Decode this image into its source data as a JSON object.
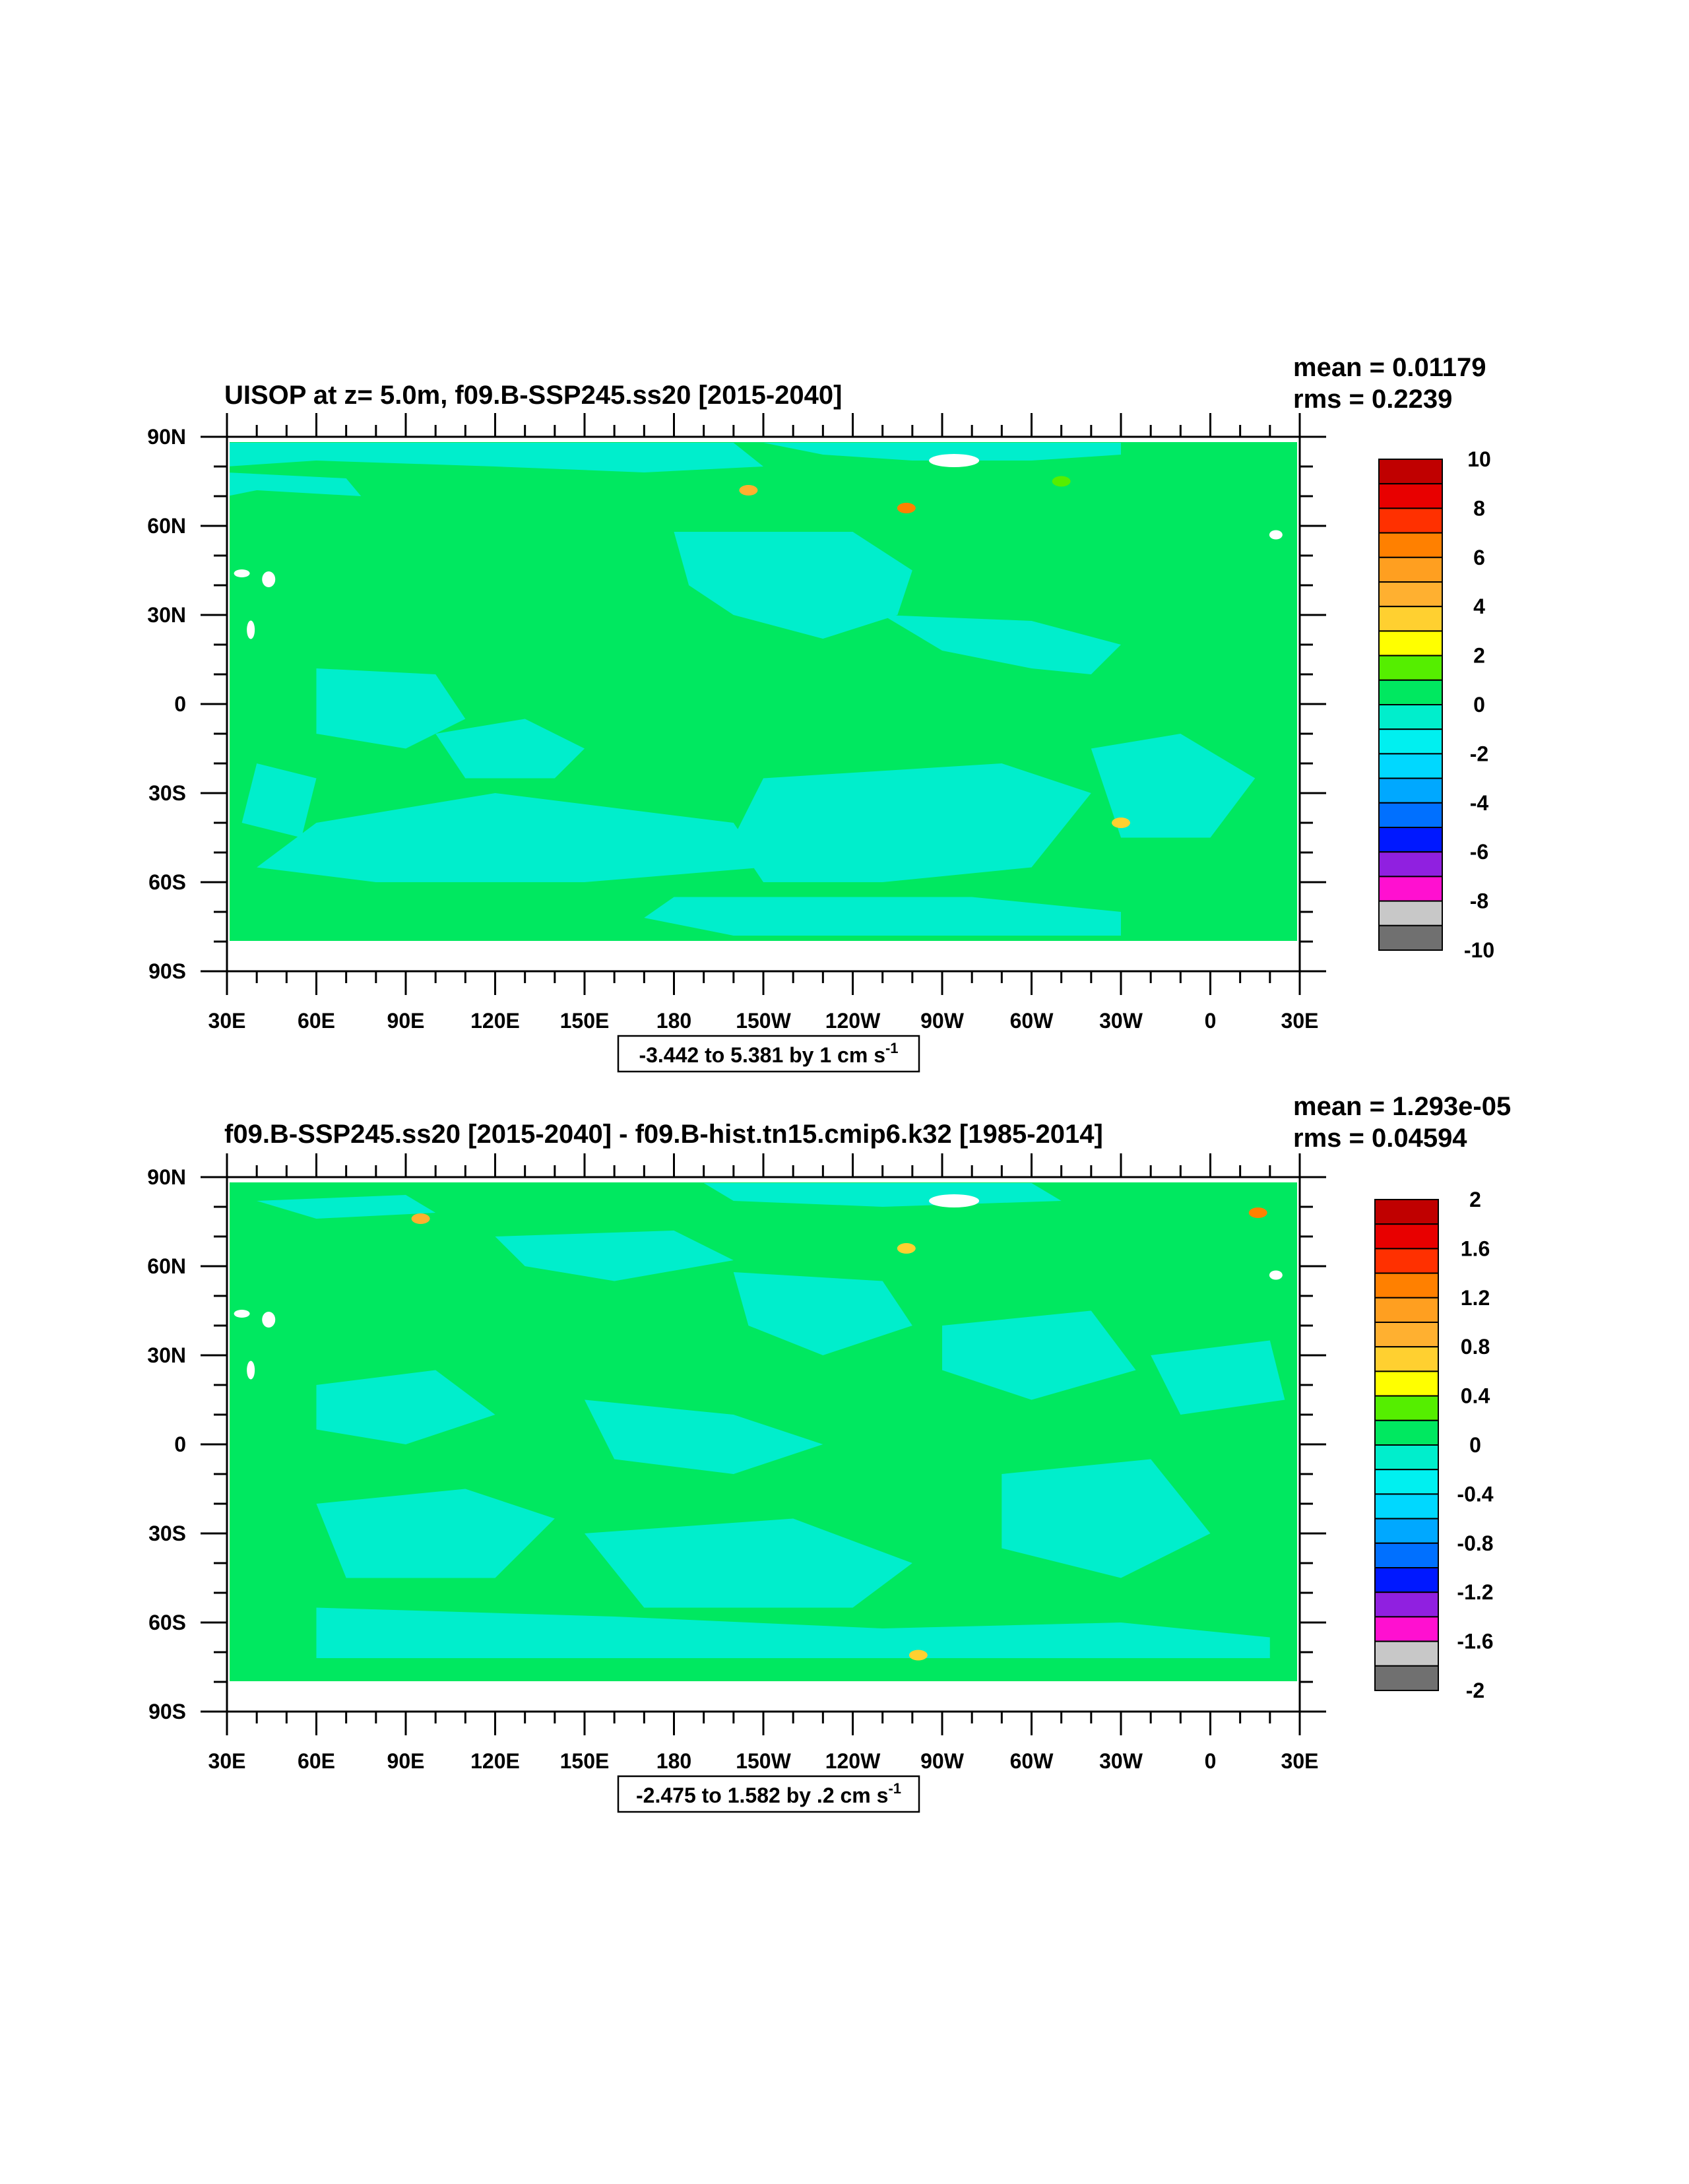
{
  "chart_data": [
    {
      "type": "heatmap",
      "title": "UISOP at z=   5.0m, f09.B-SSP245.ss20 [2015-2040]",
      "stats": {
        "mean": "mean = 0.01179",
        "rms": "rms = 0.2239"
      },
      "range_label": "-3.442 to 5.381 by 1 cm s",
      "range_superscript": "-1",
      "x_ticks": [
        "30E",
        "60E",
        "90E",
        "120E",
        "150E",
        "180",
        "150W",
        "120W",
        "90W",
        "60W",
        "30W",
        "0",
        "30E"
      ],
      "y_ticks": [
        "90N",
        "60N",
        "30N",
        "0",
        "30S",
        "60S",
        "90S"
      ],
      "colorbar_labels": [
        "10",
        "8",
        "6",
        "4",
        "2",
        "0",
        "-2",
        "-4",
        "-6",
        "-8",
        "-10"
      ],
      "colors": [
        "#c00000",
        "#e80000",
        "#ff3000",
        "#ff8000",
        "#ff9f20",
        "#ffb030",
        "#ffd030",
        "#ffff00",
        "#55ee00",
        "#00e860",
        "#00eecc",
        "#00f0f0",
        "#00d8ff",
        "#00a8ff",
        "#0070ff",
        "#0018ff",
        "#9020e0",
        "#ff10d0",
        "#c8c8c8",
        "#707070"
      ],
      "fill_colors": {
        "green": "#00e860",
        "cyan": "#00eecc"
      }
    },
    {
      "type": "heatmap",
      "title": "f09.B-SSP245.ss20 [2015-2040] - f09.B-hist.tn15.cmip6.k32 [1985-2014]",
      "stats": {
        "mean": "mean = 1.293e-05",
        "rms": "rms = 0.04594"
      },
      "range_label": "-2.475 to 1.582 by .2 cm s",
      "range_superscript": "-1",
      "x_ticks": [
        "30E",
        "60E",
        "90E",
        "120E",
        "150E",
        "180",
        "150W",
        "120W",
        "90W",
        "60W",
        "30W",
        "0",
        "30E"
      ],
      "y_ticks": [
        "90N",
        "60N",
        "30N",
        "0",
        "30S",
        "60S",
        "90S"
      ],
      "colorbar_labels": [
        "2",
        "1.6",
        "1.2",
        "0.8",
        "0.4",
        "0",
        "-0.4",
        "-0.8",
        "-1.2",
        "-1.6",
        "-2"
      ],
      "colors": [
        "#c00000",
        "#e80000",
        "#ff3000",
        "#ff8000",
        "#ff9f20",
        "#ffb030",
        "#ffd030",
        "#ffff00",
        "#55ee00",
        "#00e860",
        "#00eecc",
        "#00f0f0",
        "#00d8ff",
        "#00a8ff",
        "#0070ff",
        "#0018ff",
        "#9020e0",
        "#ff10d0",
        "#c8c8c8",
        "#707070"
      ],
      "fill_colors": {
        "green": "#00e860",
        "cyan": "#00eecc"
      }
    }
  ]
}
